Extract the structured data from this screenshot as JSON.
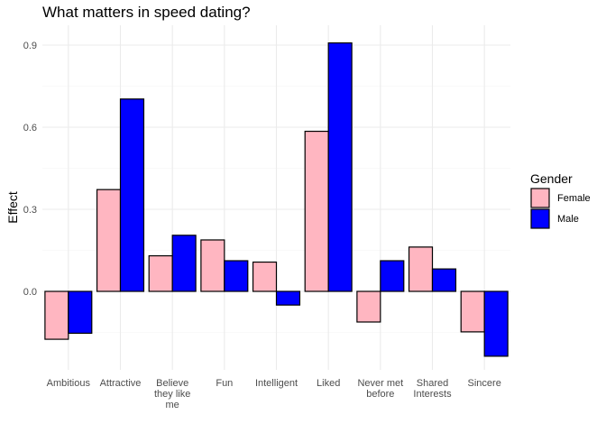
{
  "chart_data": {
    "type": "bar",
    "title": "What matters in speed dating?",
    "xlabel": "",
    "ylabel": "Effect",
    "categories": [
      "Ambitious",
      "Attractive",
      "Believe they like me",
      "Fun",
      "Intelligent",
      "Liked",
      "Never met before",
      "Shared Interests",
      "Sincere"
    ],
    "category_lines": [
      [
        "Ambitious"
      ],
      [
        "Attractive"
      ],
      [
        "Believe",
        "they like",
        "me"
      ],
      [
        "Fun"
      ],
      [
        "Intelligent"
      ],
      [
        "Liked"
      ],
      [
        "Never met",
        "before"
      ],
      [
        "Shared",
        "Interests"
      ],
      [
        "Sincere"
      ]
    ],
    "series": [
      {
        "name": "Female",
        "color": "#FFB6C1",
        "values": [
          -0.175,
          0.372,
          0.13,
          0.188,
          0.107,
          0.585,
          -0.112,
          0.162,
          -0.148
        ]
      },
      {
        "name": "Male",
        "color": "#0000FF",
        "values": [
          -0.153,
          0.703,
          0.205,
          0.112,
          -0.05,
          0.908,
          0.112,
          0.082,
          -0.237
        ]
      }
    ],
    "yticks": [
      0.0,
      0.3,
      0.6,
      0.9
    ],
    "ytick_labels": [
      "0.0",
      "0.3",
      "0.6",
      "0.9"
    ],
    "ylim": [
      -0.28,
      0.96
    ],
    "grid": true,
    "legend": {
      "title": "Gender",
      "position": "right"
    }
  }
}
